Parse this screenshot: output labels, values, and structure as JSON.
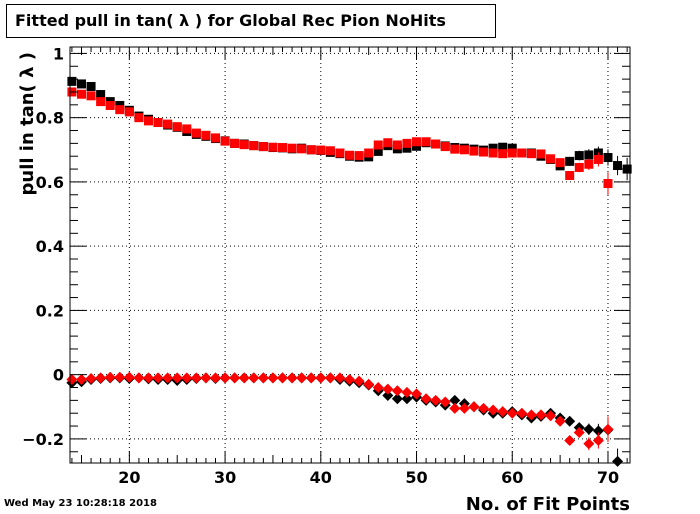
{
  "title": "Fitted pull in tan( λ ) for Global Rec Pion NoHits",
  "timestamp": "Wed May 23 10:28:18 2018",
  "chart_data": {
    "type": "scatter",
    "xlabel": "No. of Fit Points",
    "ylabel": "pull in tan( λ )",
    "xlim": [
      13.8,
      72.3
    ],
    "ylim": [
      -0.275,
      1.02
    ],
    "x_ticks": [
      20,
      30,
      40,
      50,
      60,
      70
    ],
    "y_ticks": [
      -0.2,
      0,
      0.2,
      0.4,
      0.6,
      0.8,
      1
    ],
    "y_tick_labels": [
      "−0.2",
      "0",
      "0.2",
      "0.4",
      "0.6",
      "0.8",
      "1"
    ],
    "grid": true,
    "series": [
      {
        "marker": "square",
        "color": "#000000",
        "x": [
          14,
          15,
          16,
          17,
          18,
          19,
          20,
          21,
          22,
          23,
          24,
          25,
          26,
          27,
          28,
          29,
          30,
          31,
          32,
          33,
          34,
          35,
          36,
          37,
          38,
          39,
          40,
          41,
          42,
          43,
          44,
          45,
          46,
          47,
          48,
          49,
          50,
          51,
          52,
          53,
          54,
          55,
          56,
          57,
          58,
          59,
          60,
          61,
          62,
          63,
          64,
          65,
          66,
          67,
          68,
          69,
          70,
          71,
          72
        ],
        "y": [
          0.913,
          0.905,
          0.897,
          0.872,
          0.85,
          0.838,
          0.823,
          0.805,
          0.795,
          0.785,
          0.777,
          0.77,
          0.757,
          0.748,
          0.742,
          0.735,
          0.728,
          0.72,
          0.718,
          0.713,
          0.71,
          0.707,
          0.706,
          0.703,
          0.705,
          0.7,
          0.698,
          0.692,
          0.688,
          0.68,
          0.677,
          0.678,
          0.695,
          0.713,
          0.703,
          0.705,
          0.711,
          0.722,
          0.718,
          0.712,
          0.707,
          0.705,
          0.702,
          0.699,
          0.705,
          0.708,
          0.705,
          0.69,
          0.69,
          0.68,
          0.67,
          0.65,
          0.664,
          0.682,
          0.684,
          0.69,
          0.676,
          0.651,
          0.64
        ],
        "err": [
          0.006,
          0.006,
          0.006,
          0.006,
          0.005,
          0.005,
          0.005,
          0.005,
          0.005,
          0.005,
          0.005,
          0.005,
          0.005,
          0.005,
          0.005,
          0.005,
          0.005,
          0.005,
          0.005,
          0.005,
          0.005,
          0.005,
          0.005,
          0.005,
          0.005,
          0.005,
          0.005,
          0.005,
          0.005,
          0.005,
          0.006,
          0.006,
          0.006,
          0.006,
          0.006,
          0.006,
          0.006,
          0.006,
          0.006,
          0.006,
          0.006,
          0.006,
          0.007,
          0.007,
          0.007,
          0.008,
          0.008,
          0.008,
          0.009,
          0.01,
          0.011,
          0.012,
          0.014,
          0.015,
          0.018,
          0.02,
          0.025,
          0.03,
          0.035
        ]
      },
      {
        "marker": "square",
        "color": "#ff0000",
        "x": [
          14,
          15,
          16,
          17,
          18,
          19,
          20,
          21,
          22,
          23,
          24,
          25,
          26,
          27,
          28,
          29,
          30,
          31,
          32,
          33,
          34,
          35,
          36,
          37,
          38,
          39,
          40,
          41,
          42,
          43,
          44,
          45,
          46,
          47,
          48,
          49,
          50,
          51,
          52,
          53,
          54,
          55,
          56,
          57,
          58,
          59,
          60,
          61,
          62,
          63,
          64,
          65,
          66,
          67,
          68,
          69,
          70
        ],
        "y": [
          0.88,
          0.873,
          0.868,
          0.85,
          0.838,
          0.825,
          0.818,
          0.8,
          0.79,
          0.785,
          0.78,
          0.772,
          0.765,
          0.752,
          0.745,
          0.737,
          0.727,
          0.72,
          0.716,
          0.713,
          0.71,
          0.708,
          0.707,
          0.705,
          0.703,
          0.7,
          0.699,
          0.697,
          0.69,
          0.683,
          0.682,
          0.69,
          0.715,
          0.722,
          0.715,
          0.72,
          0.725,
          0.725,
          0.718,
          0.71,
          0.702,
          0.7,
          0.696,
          0.693,
          0.69,
          0.688,
          0.69,
          0.69,
          0.688,
          0.687,
          0.672,
          0.66,
          0.62,
          0.645,
          0.655,
          0.67,
          0.595
        ],
        "err": [
          0.006,
          0.006,
          0.006,
          0.006,
          0.005,
          0.005,
          0.005,
          0.005,
          0.005,
          0.005,
          0.005,
          0.005,
          0.005,
          0.005,
          0.005,
          0.005,
          0.005,
          0.005,
          0.005,
          0.005,
          0.005,
          0.005,
          0.005,
          0.005,
          0.005,
          0.005,
          0.005,
          0.005,
          0.005,
          0.005,
          0.006,
          0.006,
          0.006,
          0.006,
          0.006,
          0.006,
          0.006,
          0.006,
          0.006,
          0.006,
          0.006,
          0.006,
          0.007,
          0.007,
          0.007,
          0.008,
          0.008,
          0.008,
          0.009,
          0.01,
          0.011,
          0.012,
          0.014,
          0.015,
          0.018,
          0.022,
          0.035
        ]
      },
      {
        "marker": "diamond",
        "color": "#000000",
        "x": [
          14,
          15,
          16,
          17,
          18,
          19,
          20,
          21,
          22,
          23,
          24,
          25,
          26,
          27,
          28,
          29,
          30,
          31,
          32,
          33,
          34,
          35,
          36,
          37,
          38,
          39,
          40,
          41,
          42,
          43,
          44,
          45,
          46,
          47,
          48,
          49,
          50,
          51,
          52,
          53,
          54,
          55,
          56,
          57,
          58,
          59,
          60,
          61,
          62,
          63,
          64,
          65,
          66,
          67,
          68,
          69,
          70,
          71
        ],
        "y": [
          -0.025,
          -0.022,
          -0.015,
          -0.012,
          -0.01,
          -0.01,
          -0.012,
          -0.01,
          -0.013,
          -0.015,
          -0.015,
          -0.018,
          -0.015,
          -0.012,
          -0.01,
          -0.012,
          -0.01,
          -0.01,
          -0.01,
          -0.01,
          -0.01,
          -0.01,
          -0.01,
          -0.01,
          -0.01,
          -0.01,
          -0.01,
          -0.01,
          -0.015,
          -0.02,
          -0.025,
          -0.032,
          -0.05,
          -0.065,
          -0.075,
          -0.075,
          -0.07,
          -0.08,
          -0.085,
          -0.095,
          -0.08,
          -0.09,
          -0.1,
          -0.11,
          -0.12,
          -0.12,
          -0.115,
          -0.125,
          -0.135,
          -0.13,
          -0.12,
          -0.135,
          -0.145,
          -0.165,
          -0.17,
          -0.175,
          -0.172,
          -0.27
        ],
        "err": [
          0.006,
          0.006,
          0.006,
          0.006,
          0.005,
          0.005,
          0.005,
          0.005,
          0.005,
          0.005,
          0.005,
          0.005,
          0.005,
          0.005,
          0.005,
          0.005,
          0.005,
          0.005,
          0.005,
          0.005,
          0.005,
          0.005,
          0.005,
          0.005,
          0.005,
          0.005,
          0.005,
          0.005,
          0.005,
          0.005,
          0.006,
          0.006,
          0.006,
          0.006,
          0.006,
          0.006,
          0.006,
          0.006,
          0.006,
          0.006,
          0.006,
          0.006,
          0.007,
          0.007,
          0.007,
          0.008,
          0.008,
          0.008,
          0.009,
          0.01,
          0.011,
          0.012,
          0.014,
          0.016,
          0.018,
          0.022,
          0.028,
          0.04
        ]
      },
      {
        "marker": "diamond",
        "color": "#ff0000",
        "x": [
          14,
          15,
          16,
          17,
          18,
          19,
          20,
          21,
          22,
          23,
          24,
          25,
          26,
          27,
          28,
          29,
          30,
          31,
          32,
          33,
          34,
          35,
          36,
          37,
          38,
          39,
          40,
          41,
          42,
          43,
          44,
          45,
          46,
          47,
          48,
          49,
          50,
          51,
          52,
          53,
          54,
          55,
          56,
          57,
          58,
          59,
          60,
          61,
          62,
          63,
          64,
          65,
          66,
          67,
          68,
          69,
          70
        ],
        "y": [
          -0.015,
          -0.015,
          -0.012,
          -0.01,
          -0.008,
          -0.008,
          -0.008,
          -0.01,
          -0.01,
          -0.01,
          -0.01,
          -0.01,
          -0.01,
          -0.01,
          -0.01,
          -0.01,
          -0.01,
          -0.01,
          -0.01,
          -0.01,
          -0.01,
          -0.01,
          -0.01,
          -0.01,
          -0.01,
          -0.01,
          -0.01,
          -0.01,
          -0.01,
          -0.015,
          -0.02,
          -0.03,
          -0.04,
          -0.045,
          -0.05,
          -0.055,
          -0.06,
          -0.075,
          -0.08,
          -0.085,
          -0.105,
          -0.105,
          -0.1,
          -0.105,
          -0.11,
          -0.115,
          -0.12,
          -0.12,
          -0.125,
          -0.125,
          -0.128,
          -0.145,
          -0.205,
          -0.18,
          -0.215,
          -0.205,
          -0.17
        ],
        "err": [
          0.006,
          0.006,
          0.006,
          0.006,
          0.005,
          0.005,
          0.005,
          0.005,
          0.005,
          0.005,
          0.005,
          0.005,
          0.005,
          0.005,
          0.005,
          0.005,
          0.005,
          0.005,
          0.005,
          0.005,
          0.005,
          0.005,
          0.005,
          0.005,
          0.005,
          0.005,
          0.005,
          0.005,
          0.005,
          0.005,
          0.006,
          0.006,
          0.006,
          0.006,
          0.006,
          0.006,
          0.006,
          0.006,
          0.006,
          0.006,
          0.006,
          0.006,
          0.007,
          0.007,
          0.007,
          0.008,
          0.008,
          0.008,
          0.009,
          0.01,
          0.011,
          0.012,
          0.014,
          0.016,
          0.02,
          0.025,
          0.04
        ]
      }
    ]
  }
}
